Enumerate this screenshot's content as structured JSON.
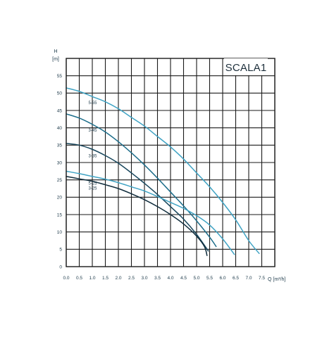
{
  "chart_data": {
    "type": "line",
    "title": "SCALA1",
    "ylabel_top": "H",
    "ylabel_unit": "[m]",
    "xlabel": "Q [m³/h]",
    "xlim": [
      0,
      8.0
    ],
    "ylim": [
      0,
      60
    ],
    "x_ticks": [
      0,
      0.5,
      1.0,
      1.5,
      2.0,
      2.5,
      3.0,
      3.5,
      4.0,
      4.5,
      5.0,
      5.5,
      6.0,
      6.5,
      7.0,
      7.5
    ],
    "x_tick_labels": [
      "0.0",
      "0.5",
      "1.0",
      "1.5",
      "2.0",
      "2.5",
      "3.0",
      "3.5",
      "4.0",
      "4.5",
      "5.0",
      "5.5",
      "6.0",
      "6.5",
      "7.0",
      "7.5"
    ],
    "y_ticks": [
      0,
      5,
      10,
      15,
      20,
      25,
      30,
      35,
      40,
      45,
      50,
      55
    ],
    "y_tick_labels": [
      "0",
      "5",
      "10",
      "15",
      "20",
      "25",
      "30",
      "35",
      "40",
      "45",
      "50",
      "55"
    ],
    "grid": true,
    "series": [
      {
        "name": "5-55",
        "color": "#3fa3c4",
        "x": [
          0.0,
          0.5,
          1.0,
          1.5,
          2.0,
          2.5,
          3.0,
          3.5,
          4.0,
          4.5,
          5.0,
          5.5,
          6.0,
          6.5,
          7.0,
          7.4
        ],
        "y": [
          51.5,
          50.5,
          49.0,
          47.5,
          45.5,
          43.0,
          40.5,
          37.5,
          34.5,
          31.0,
          27.0,
          23.0,
          18.5,
          13.5,
          7.5,
          3.8
        ]
      },
      {
        "name": "3-45",
        "color": "#1c6d8a",
        "x": [
          0.0,
          0.5,
          1.0,
          1.5,
          2.0,
          2.5,
          3.0,
          3.5,
          4.0,
          4.5,
          5.0,
          5.5,
          5.75
        ],
        "y": [
          44.0,
          42.8,
          41.0,
          38.8,
          36.0,
          32.8,
          29.3,
          25.5,
          21.5,
          17.5,
          13.2,
          8.5,
          5.8
        ]
      },
      {
        "name": "3-35",
        "color": "#17465c",
        "x": [
          0.0,
          0.5,
          1.0,
          1.5,
          2.0,
          2.5,
          3.0,
          3.5,
          4.0,
          4.5,
          5.0,
          5.45
        ],
        "y": [
          35.5,
          35.0,
          33.8,
          32.0,
          29.8,
          27.0,
          24.0,
          20.8,
          17.3,
          13.7,
          9.3,
          4.5
        ]
      },
      {
        "name": "5-25",
        "color": "#3fa3c4",
        "x": [
          0.0,
          0.5,
          1.0,
          1.5,
          2.0,
          2.5,
          3.0,
          3.5,
          4.0,
          4.5,
          5.0,
          5.5,
          6.0,
          6.45
        ],
        "y": [
          27.5,
          26.8,
          26.0,
          25.2,
          24.2,
          23.0,
          21.8,
          20.2,
          18.5,
          16.8,
          14.7,
          12.0,
          8.0,
          3.5
        ]
      },
      {
        "name": "3-25",
        "color": "#0f2c3c",
        "x": [
          0.0,
          0.5,
          1.0,
          1.5,
          2.0,
          2.5,
          3.0,
          3.5,
          4.0,
          4.5,
          5.0,
          5.3,
          5.4
        ],
        "y": [
          26.0,
          25.3,
          24.6,
          23.6,
          22.5,
          21.0,
          19.3,
          17.3,
          15.0,
          12.3,
          8.8,
          5.8,
          3.2
        ]
      }
    ]
  }
}
